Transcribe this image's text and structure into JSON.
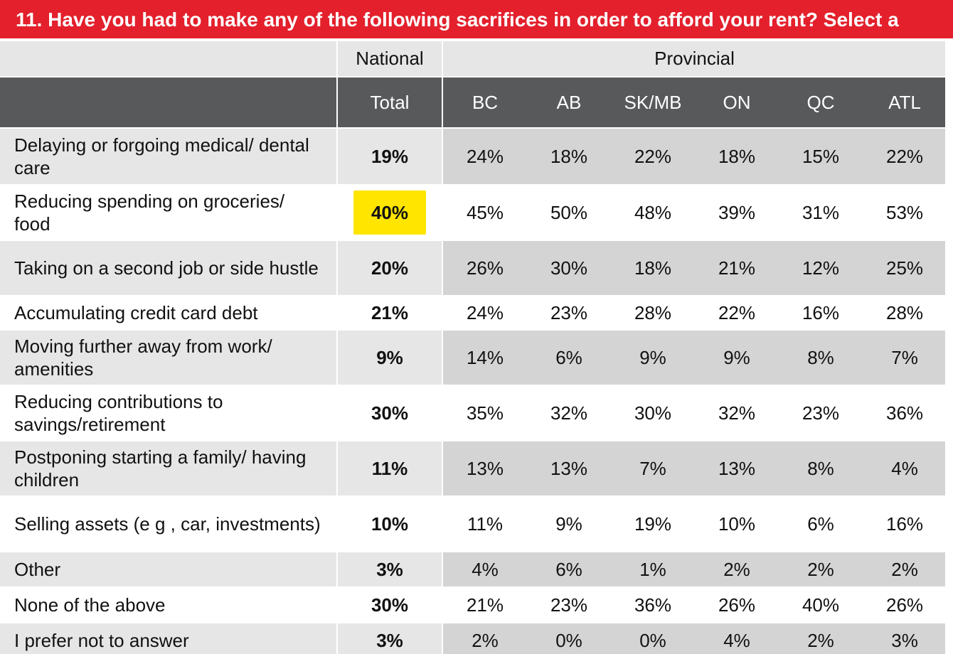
{
  "title": "11. Have you had to make any of the following sacrifices in order to afford your rent? Select a",
  "header": {
    "national": "National",
    "provincial": "Provincial",
    "columns": [
      "Total",
      "BC",
      "AB",
      "SK/MB",
      "ON",
      "QC",
      "ATL"
    ]
  },
  "rows": [
    {
      "label": "Delaying or forgoing medical/ dental care",
      "values": [
        "19%",
        "24%",
        "18%",
        "22%",
        "18%",
        "15%",
        "22%"
      ]
    },
    {
      "label": "Reducing spending on groceries/ food",
      "values": [
        "40%",
        "45%",
        "50%",
        "48%",
        "39%",
        "31%",
        "53%"
      ],
      "highlighted_total": true
    },
    {
      "label": "Taking on a second job or side hustle",
      "values": [
        "20%",
        "26%",
        "30%",
        "18%",
        "21%",
        "12%",
        "25%"
      ]
    },
    {
      "label": "Accumulating credit card debt",
      "values": [
        "21%",
        "24%",
        "23%",
        "28%",
        "22%",
        "16%",
        "28%"
      ]
    },
    {
      "label": "Moving further away from work/ amenities",
      "values": [
        "9%",
        "14%",
        "6%",
        "9%",
        "9%",
        "8%",
        "7%"
      ]
    },
    {
      "label": "Reducing contributions to savings/retirement",
      "values": [
        "30%",
        "35%",
        "32%",
        "30%",
        "32%",
        "23%",
        "36%"
      ]
    },
    {
      "label": "Postponing starting a family/ having children",
      "values": [
        "11%",
        "13%",
        "13%",
        "7%",
        "13%",
        "8%",
        "4%"
      ]
    },
    {
      "label": "Selling assets (e g , car, investments)",
      "values": [
        "10%",
        "11%",
        "9%",
        "19%",
        "10%",
        "6%",
        "16%"
      ]
    },
    {
      "label": "Other",
      "values": [
        "3%",
        "4%",
        "6%",
        "1%",
        "2%",
        "2%",
        "2%"
      ]
    },
    {
      "label": "None of the above",
      "values": [
        "30%",
        "21%",
        "23%",
        "36%",
        "26%",
        "40%",
        "26%"
      ]
    },
    {
      "label": "I prefer not to answer",
      "values": [
        "3%",
        "2%",
        "0%",
        "0%",
        "4%",
        "2%",
        "3%"
      ]
    }
  ],
  "colors": {
    "title_bg": "#e3202c",
    "header_dark": "#58595b",
    "shade_light": "#e6e6e6",
    "shade_dark": "#d4d4d4",
    "highlight": "#ffe500"
  }
}
